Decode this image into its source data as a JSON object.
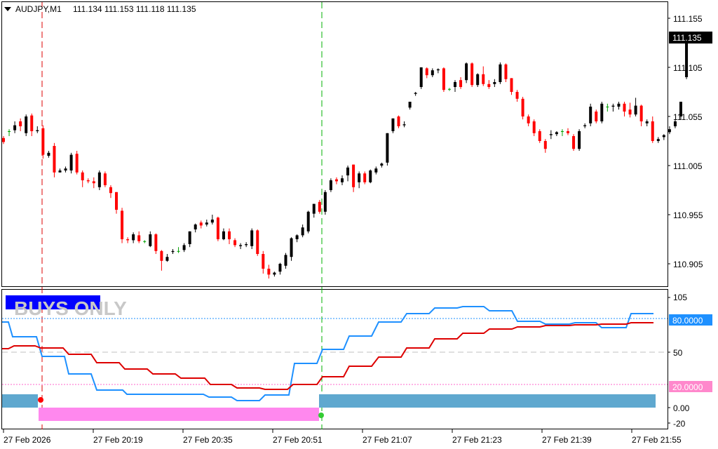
{
  "header": {
    "symbol": "AUDJPY,M1",
    "ohlc": "111.134 111.153 111.118 111.135"
  },
  "price_axis": {
    "ticks": [
      "111.155",
      "111.105",
      "111.055",
      "111.005",
      "110.955",
      "110.905"
    ],
    "current": "111.135"
  },
  "indicator": {
    "banner": "BUYS ONLY",
    "axis_ticks": [
      "105",
      "50",
      "0.00",
      "-20"
    ],
    "level_high": "80.0000",
    "level_low": "20.0000"
  },
  "time_axis": {
    "labels": [
      "27 Feb 2026",
      "27 Feb 20:19",
      "27 Feb 20:35",
      "27 Feb 20:51",
      "27 Feb 21:07",
      "27 Feb 21:23",
      "27 Feb 21:39",
      "27 Feb 21:55"
    ]
  },
  "colors": {
    "up": "#000000",
    "down": "#ff0000",
    "doji": "#00a000",
    "blue_line": "#1e90ff",
    "red_line": "#dd0000",
    "bar_blue": "#5fa8cf",
    "bar_pink": "#ff88ee",
    "banner_bg": "#0000ff"
  },
  "chart_data": {
    "type": "candlestick",
    "y_min": 110.892,
    "y_max": 111.165,
    "candles": [
      [
        111.033,
        111.029,
        111.027,
        111.035
      ],
      [
        111.04,
        111.04,
        111.035,
        111.042
      ],
      [
        111.041,
        111.046,
        111.038,
        111.05
      ],
      [
        111.05,
        111.045,
        111.04,
        111.053
      ],
      [
        111.038,
        111.055,
        111.035,
        111.057
      ],
      [
        111.056,
        111.04,
        111.035,
        111.058
      ],
      [
        111.04,
        111.041,
        111.038,
        111.045
      ],
      [
        111.043,
        111.016,
        111.012,
        111.046
      ],
      [
        111.015,
        111.018,
        111.013,
        111.02
      ],
      [
        111.025,
        110.998,
        110.993,
        111.028
      ],
      [
        110.998,
        111.0,
        110.998,
        111.002
      ],
      [
        111.0,
        111.002,
        110.998,
        111.004
      ],
      [
        111.0,
        111.016,
        110.997,
        111.018
      ],
      [
        111.017,
        110.998,
        110.996,
        111.02
      ],
      [
        110.998,
        110.99,
        110.983,
        111.0
      ],
      [
        110.99,
        110.989,
        110.987,
        110.992
      ],
      [
        110.989,
        110.987,
        110.982,
        110.993
      ],
      [
        110.983,
        110.998,
        110.98,
        111.0
      ],
      [
        110.997,
        110.985,
        110.983,
        110.999
      ],
      [
        110.983,
        110.977,
        110.972,
        110.985
      ],
      [
        110.978,
        110.96,
        110.956,
        110.978
      ],
      [
        110.959,
        110.93,
        110.926,
        110.962
      ],
      [
        110.93,
        110.929,
        110.926,
        110.932
      ],
      [
        110.929,
        110.935,
        110.926,
        110.937
      ],
      [
        110.934,
        110.928,
        110.926,
        110.938
      ],
      [
        110.928,
        110.928,
        110.926,
        110.929
      ],
      [
        110.923,
        110.935,
        110.922,
        110.938
      ],
      [
        110.935,
        110.918,
        110.915,
        110.936
      ],
      [
        110.918,
        110.908,
        110.898,
        110.919
      ],
      [
        110.908,
        110.912,
        110.907,
        110.915
      ],
      [
        110.917,
        110.918,
        110.915,
        110.92
      ],
      [
        110.918,
        110.918,
        110.916,
        110.922
      ],
      [
        110.919,
        110.924,
        110.917,
        110.926
      ],
      [
        110.925,
        110.938,
        110.922,
        110.938
      ],
      [
        110.94,
        110.945,
        110.937,
        110.946
      ],
      [
        110.947,
        110.944,
        110.941,
        110.949
      ],
      [
        110.945,
        110.947,
        110.943,
        110.95
      ],
      [
        110.947,
        110.95,
        110.945,
        110.955
      ],
      [
        110.952,
        110.93,
        110.928,
        110.953
      ],
      [
        110.93,
        110.938,
        110.929,
        110.941
      ],
      [
        110.938,
        110.93,
        110.925,
        110.941
      ],
      [
        110.929,
        110.924,
        110.922,
        110.931
      ],
      [
        110.923,
        110.924,
        110.92,
        110.926
      ],
      [
        110.924,
        110.925,
        110.922,
        110.927
      ],
      [
        110.923,
        110.939,
        110.92,
        110.941
      ],
      [
        110.939,
        110.915,
        110.913,
        110.94
      ],
      [
        110.915,
        110.9,
        110.895,
        110.918
      ],
      [
        110.9,
        110.894,
        110.89,
        110.904
      ],
      [
        110.894,
        110.896,
        110.892,
        110.897
      ],
      [
        110.897,
        110.905,
        110.894,
        110.906
      ],
      [
        110.903,
        110.914,
        110.9,
        110.916
      ],
      [
        110.912,
        110.931,
        110.908,
        110.932
      ],
      [
        110.93,
        110.934,
        110.927,
        110.935
      ],
      [
        110.934,
        110.942,
        110.932,
        110.945
      ],
      [
        110.938,
        110.958,
        110.936,
        110.959
      ],
      [
        110.956,
        110.966,
        110.952,
        110.966
      ],
      [
        110.968,
        110.958,
        110.956,
        110.97
      ],
      [
        110.958,
        110.978,
        110.955,
        110.98
      ],
      [
        110.98,
        110.99,
        110.978,
        110.992
      ],
      [
        110.991,
        110.989,
        110.986,
        110.993
      ],
      [
        110.988,
        110.992,
        110.985,
        110.995
      ],
      [
        110.995,
        111.003,
        110.989,
        111.005
      ],
      [
        111.006,
        110.983,
        110.978,
        111.006
      ],
      [
        110.988,
        110.997,
        110.982,
        110.999
      ],
      [
        110.997,
        110.988,
        110.986,
        110.999
      ],
      [
        110.988,
        111.0,
        110.987,
        111.001
      ],
      [
        110.998,
        111.002,
        110.996,
        111.004
      ],
      [
        111.005,
        111.007,
        111.003,
        111.008
      ],
      [
        111.008,
        111.038,
        111.005,
        111.038
      ],
      [
        111.04,
        111.053,
        111.038,
        111.053
      ],
      [
        111.055,
        111.045,
        111.043,
        111.056
      ],
      [
        111.046,
        111.047,
        111.044,
        111.05
      ],
      [
        111.064,
        111.07,
        111.062,
        111.07
      ],
      [
        111.078,
        111.079,
        111.076,
        111.08
      ],
      [
        111.085,
        111.105,
        111.083,
        111.105
      ],
      [
        111.104,
        111.097,
        111.094,
        111.105
      ],
      [
        111.097,
        111.102,
        111.095,
        111.104
      ],
      [
        111.102,
        111.103,
        111.099,
        111.104
      ],
      [
        111.104,
        111.082,
        111.08,
        111.105
      ],
      [
        111.083,
        111.083,
        111.081,
        111.084
      ],
      [
        111.085,
        111.09,
        111.08,
        111.092
      ],
      [
        111.092,
        111.085,
        111.083,
        111.095
      ],
      [
        111.092,
        111.109,
        111.089,
        111.11
      ],
      [
        111.109,
        111.087,
        111.085,
        111.11
      ],
      [
        111.087,
        111.098,
        111.085,
        111.099
      ],
      [
        111.098,
        111.088,
        111.086,
        111.106
      ],
      [
        111.088,
        111.085,
        111.083,
        111.092
      ],
      [
        111.088,
        111.09,
        111.085,
        111.093
      ],
      [
        111.09,
        111.108,
        111.088,
        111.11
      ],
      [
        111.108,
        111.093,
        111.09,
        111.109
      ],
      [
        111.094,
        111.08,
        111.077,
        111.094
      ],
      [
        111.08,
        111.073,
        111.07,
        111.082
      ],
      [
        111.073,
        111.055,
        111.052,
        111.075
      ],
      [
        111.055,
        111.048,
        111.045,
        111.057
      ],
      [
        111.05,
        111.038,
        111.035,
        111.052
      ],
      [
        111.04,
        111.03,
        111.028,
        111.042
      ],
      [
        111.03,
        111.022,
        111.018,
        111.032
      ],
      [
        111.036,
        111.037,
        111.032,
        111.041
      ],
      [
        111.037,
        111.039,
        111.035,
        111.04
      ],
      [
        111.04,
        111.04,
        111.035,
        111.042
      ],
      [
        111.04,
        111.038,
        111.036,
        111.043
      ],
      [
        111.035,
        111.022,
        111.02,
        111.037
      ],
      [
        111.022,
        111.04,
        111.02,
        111.042
      ],
      [
        111.045,
        111.046,
        111.043,
        111.048
      ],
      [
        111.048,
        111.065,
        111.045,
        111.068
      ],
      [
        111.06,
        111.05,
        111.048,
        111.062
      ],
      [
        111.05,
        111.068,
        111.048,
        111.07
      ],
      [
        111.065,
        111.065,
        111.06,
        111.068
      ],
      [
        111.065,
        111.066,
        111.06,
        111.068
      ],
      [
        111.065,
        111.068,
        111.062,
        111.07
      ],
      [
        111.068,
        111.06,
        111.055,
        111.07
      ],
      [
        111.062,
        111.057,
        111.054,
        111.069
      ],
      [
        111.057,
        111.066,
        111.055,
        111.074
      ],
      [
        111.066,
        111.05,
        111.045,
        111.067
      ],
      [
        111.048,
        111.05,
        111.045,
        111.052
      ],
      [
        111.05,
        111.03,
        111.028,
        111.055
      ],
      [
        111.03,
        111.032,
        111.028,
        111.034
      ],
      [
        111.034,
        111.036,
        111.031,
        111.037
      ],
      [
        111.039,
        111.042,
        111.037,
        111.045
      ],
      [
        111.045,
        111.05,
        111.043,
        111.052
      ],
      [
        111.055,
        111.07,
        111.052,
        111.07
      ],
      [
        111.095,
        111.13,
        111.093,
        111.13
      ]
    ]
  }
}
